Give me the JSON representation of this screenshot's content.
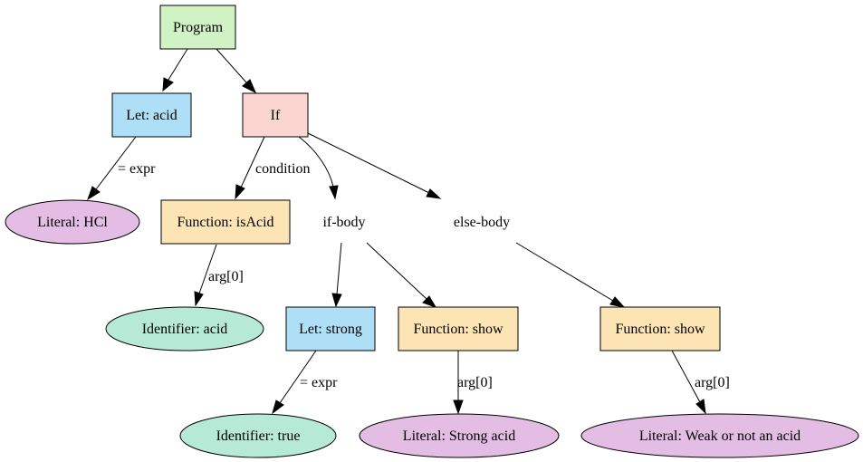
{
  "colors": {
    "program": "#d1f2c4",
    "let": "#aedff6",
    "if": "#fbd5cf",
    "function": "#fde4b5",
    "literal": "#e3bde3",
    "identifier": "#b6ead6"
  },
  "nodes": {
    "program": "Program",
    "let_acid": "Let: acid",
    "if": "If",
    "literal_hcl": "Literal: HCl",
    "function_isacid": "Function: isAcid",
    "if_body": "if-body",
    "else_body": "else-body",
    "identifier_acid": "Identifier: acid",
    "let_strong": "Let: strong",
    "function_show_1": "Function: show",
    "function_show_2": "Function: show",
    "identifier_true": "Identifier: true",
    "literal_strong": "Literal: Strong acid",
    "literal_weak": "Literal: Weak or not an acid"
  },
  "edge_labels": {
    "expr_1": "= expr",
    "condition": "condition",
    "arg0_1": "arg[0]",
    "expr_2": "= expr",
    "arg0_2": "arg[0]",
    "arg0_3": "arg[0]"
  }
}
